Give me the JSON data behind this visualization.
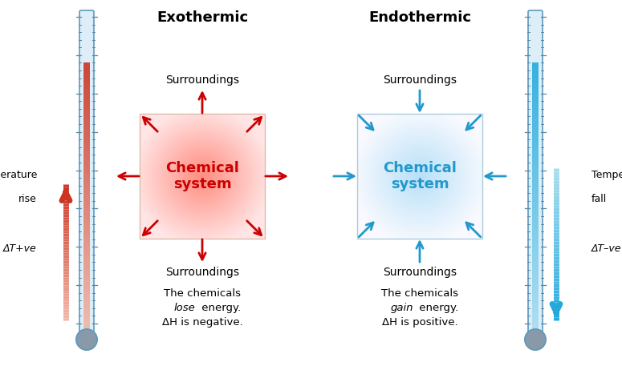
{
  "bg_color": "#ffffff",
  "exo_title": "Exothermic",
  "endo_title": "Endothermic",
  "exo_arrow_color": "#cc0000",
  "endo_arrow_color": "#2299cc",
  "exo_label": "Chemical\nsystem",
  "endo_label": "Chemical\nsystem",
  "surroundings": "Surroundings",
  "exo_text1": "The chemicals",
  "exo_text2_italic": "lose",
  "exo_text2_normal": " energy.",
  "exo_text3": "ΔH is negative.",
  "endo_text1": "The chemicals",
  "endo_text2_italic": "gain",
  "endo_text2_normal": " energy.",
  "endo_text3": "ΔH is positive.",
  "temp_rise_line1": "Temperature",
  "temp_rise_line2": "rise",
  "temp_fall_line1": "Temperature",
  "temp_fall_line2": "fall",
  "delta_t_pos": "ΔT+ve",
  "delta_t_neg": "ΔT–ve",
  "thermo_left_color_top": "#cc3322",
  "thermo_left_color_bot": "#f0b8a8",
  "thermo_right_color_top": "#22aadd",
  "thermo_right_color_bot": "#aaddf0",
  "thermo_border": "#6099bb",
  "thermo_tick": "#5588aa",
  "thermo_fill": "#ddeef8",
  "bulb_color": "#8899aa"
}
